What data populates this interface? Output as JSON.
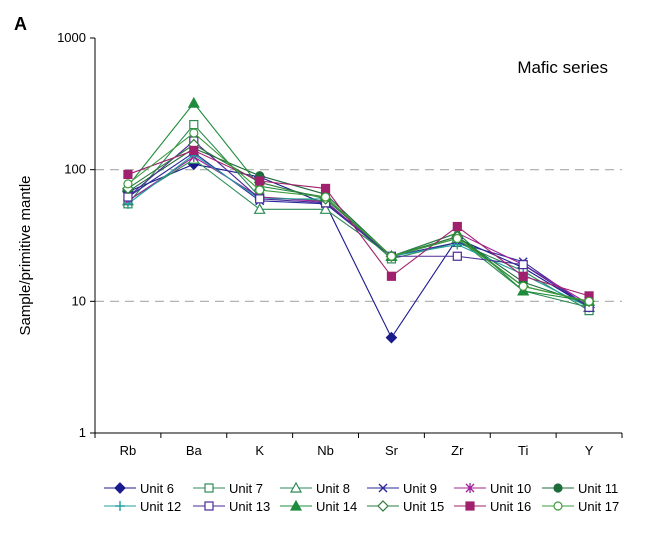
{
  "panel_label": "A",
  "chart_data": {
    "type": "line",
    "annotation": "Mafic series",
    "ylabel": "Sample/primitive mantle",
    "xlabel": "",
    "yscale": "log",
    "ylim": [
      1,
      1000
    ],
    "y_ticks": [
      "1",
      "10",
      "100",
      "1000"
    ],
    "dashed_gridlines_at": [
      10,
      100
    ],
    "categories": [
      "Rb",
      "Ba",
      "K",
      "Nb",
      "Sr",
      "Zr",
      "Ti",
      "Y"
    ],
    "legend_position": "bottom",
    "series": [
      {
        "name": "Unit 6",
        "color": "#1a1a8c",
        "marker": "diamond-filled",
        "values": [
          68,
          110,
          88,
          55,
          5.3,
          30,
          18,
          9
        ]
      },
      {
        "name": "Unit 7",
        "color": "#2e8b57",
        "marker": "square-open",
        "values": [
          55,
          220,
          62,
          58,
          21,
          28,
          17,
          8.5
        ]
      },
      {
        "name": "Unit 8",
        "color": "#2e8b57",
        "marker": "triangle-open",
        "values": [
          58,
          120,
          50,
          50,
          22,
          30,
          12,
          9
        ]
      },
      {
        "name": "Unit 9",
        "color": "#2a2a9a",
        "marker": "x",
        "values": [
          62,
          135,
          58,
          55,
          22,
          28,
          20,
          9
        ]
      },
      {
        "name": "Unit 10",
        "color": "#a0209a",
        "marker": "star",
        "values": [
          58,
          125,
          62,
          57,
          22,
          33,
          19,
          9.5
        ]
      },
      {
        "name": "Unit 11",
        "color": "#1e6b3c",
        "marker": "circle-filled",
        "values": [
          68,
          145,
          90,
          65,
          22,
          31,
          14,
          9.5
        ]
      },
      {
        "name": "Unit 12",
        "color": "#20a0a0",
        "marker": "plus",
        "values": [
          55,
          130,
          60,
          60,
          22,
          27,
          16,
          9
        ]
      },
      {
        "name": "Unit 13",
        "color": "#4a2a9a",
        "marker": "square-open",
        "values": [
          62,
          165,
          60,
          56,
          22,
          22,
          19,
          9
        ]
      },
      {
        "name": "Unit 14",
        "color": "#1e8c3c",
        "marker": "triangle-filled",
        "values": [
          75,
          320,
          75,
          62,
          22,
          33,
          12,
          10
        ]
      },
      {
        "name": "Unit 15",
        "color": "#2e7b3c",
        "marker": "diamond-open",
        "values": [
          72,
          155,
          80,
          60,
          22,
          31,
          13,
          10
        ]
      },
      {
        "name": "Unit 16",
        "color": "#a0206e",
        "marker": "square-filled",
        "values": [
          92,
          140,
          82,
          72,
          15.5,
          37,
          15.5,
          11
        ]
      },
      {
        "name": "Unit 17",
        "color": "#3c9c3c",
        "marker": "circle-open",
        "values": [
          78,
          190,
          70,
          62,
          22,
          30,
          13,
          10
        ]
      }
    ]
  }
}
